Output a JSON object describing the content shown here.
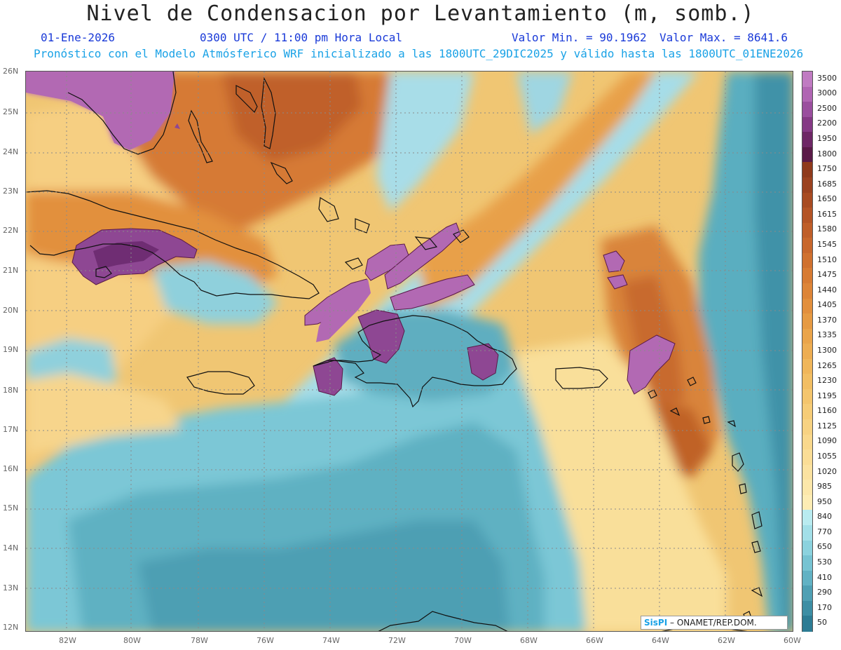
{
  "header": {
    "title": "Nivel de Condensacion por Levantamiento (m, somb.)",
    "date": "01-Ene-2026",
    "time": "0300 UTC / 11:00 pm Hora Local",
    "min_value": "Valor Min. = 90.1962",
    "max_value": "Valor Max. = 8641.6",
    "forecast_note": "Pronóstico con el Modelo Atmósferico WRF inicializado a las 1800UTC_29DIC2025 y válido hasta las  1800UTC_01ENE2026"
  },
  "map": {
    "lat_labels": [
      "26N",
      "25N",
      "24N",
      "23N",
      "22N",
      "21N",
      "20N",
      "19N",
      "18N",
      "17N",
      "16N",
      "15N",
      "14N",
      "13N",
      "12N"
    ],
    "lon_labels": [
      "82W",
      "80W",
      "78W",
      "76W",
      "74W",
      "72W",
      "70W",
      "68W",
      "66W",
      "64W",
      "62W",
      "60W"
    ],
    "credit_brand": "SisPI",
    "credit_text": "– ONAMET/REP.DOM."
  },
  "legend": {
    "levels": [
      {
        "label": "3500",
        "color": "#c07bc2"
      },
      {
        "label": "3000",
        "color": "#b065b3"
      },
      {
        "label": "2500",
        "color": "#9a4e9e"
      },
      {
        "label": "2200",
        "color": "#853985"
      },
      {
        "label": "1950",
        "color": "#6e2766"
      },
      {
        "label": "1800",
        "color": "#5a1a48"
      },
      {
        "label": "1750",
        "color": "#8f3a1c"
      },
      {
        "label": "1685",
        "color": "#9b4220"
      },
      {
        "label": "1650",
        "color": "#a84b22"
      },
      {
        "label": "1615",
        "color": "#b45426"
      },
      {
        "label": "1580",
        "color": "#bf5e29"
      },
      {
        "label": "1545",
        "color": "#c8672c"
      },
      {
        "label": "1510",
        "color": "#d0712f"
      },
      {
        "label": "1475",
        "color": "#d77b33"
      },
      {
        "label": "1440",
        "color": "#dd8538"
      },
      {
        "label": "1405",
        "color": "#e28f3d"
      },
      {
        "label": "1370",
        "color": "#e69a43"
      },
      {
        "label": "1335",
        "color": "#eaa44a"
      },
      {
        "label": "1300",
        "color": "#edad52"
      },
      {
        "label": "1265",
        "color": "#f0b65a"
      },
      {
        "label": "1230",
        "color": "#f2be63"
      },
      {
        "label": "1195",
        "color": "#f4c56d"
      },
      {
        "label": "1160",
        "color": "#f6cc77"
      },
      {
        "label": "1125",
        "color": "#f7d282"
      },
      {
        "label": "1090",
        "color": "#f9d88c"
      },
      {
        "label": "1055",
        "color": "#fadd96"
      },
      {
        "label": "1020",
        "color": "#fbe2a0"
      },
      {
        "label": "985",
        "color": "#fce7aa"
      },
      {
        "label": "950",
        "color": "#fdecb4"
      },
      {
        "label": "840",
        "color": "#b9ebf0"
      },
      {
        "label": "770",
        "color": "#a2dfe8"
      },
      {
        "label": "650",
        "color": "#8bd2de"
      },
      {
        "label": "530",
        "color": "#76c3d2"
      },
      {
        "label": "410",
        "color": "#62b2c4"
      },
      {
        "label": "290",
        "color": "#4fa0b4"
      },
      {
        "label": "170",
        "color": "#3d8ea4"
      },
      {
        "label": "50",
        "color": "#2d7c94"
      }
    ]
  }
}
